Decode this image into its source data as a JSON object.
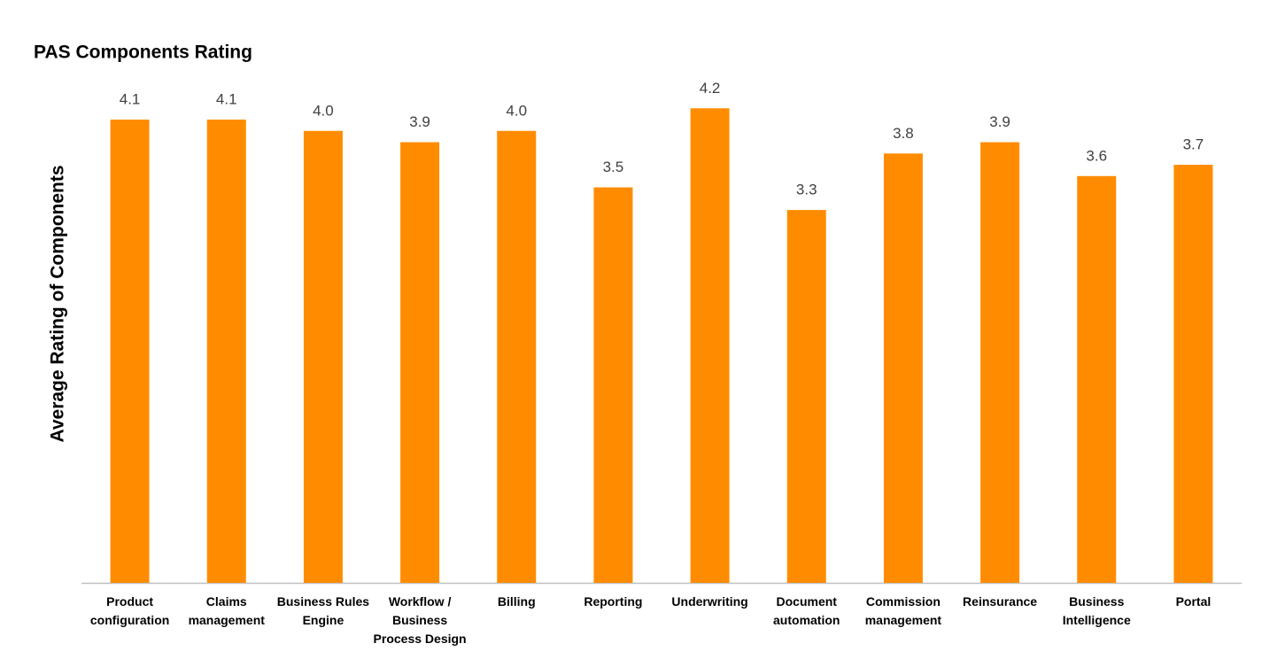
{
  "chart_data": {
    "type": "bar",
    "title": "PAS Components Rating",
    "y_label": "Average Rating of Components",
    "categories": [
      "Product\nconfiguration",
      "Claims\nmanagement",
      "Business Rules\nEngine",
      "Workflow /\nBusiness\nProcess Design",
      "Billing",
      "Reporting",
      "Underwriting",
      "Document\nautomation",
      "Commission\nmanagement",
      "Reinsurance",
      "Business\nIntelligence",
      "Portal"
    ],
    "values": [
      4.1,
      4.1,
      4.0,
      3.9,
      4.0,
      3.5,
      4.2,
      3.3,
      3.8,
      3.9,
      3.6,
      3.7
    ],
    "value_labels": [
      "4.1",
      "4.1",
      "4.0",
      "3.9",
      "4.0",
      "3.5",
      "4.2",
      "3.3",
      "3.8",
      "3.9",
      "3.6",
      "3.7"
    ],
    "color": "#ff8c00",
    "ylim": [
      0,
      4.5
    ],
    "grid": false
  }
}
